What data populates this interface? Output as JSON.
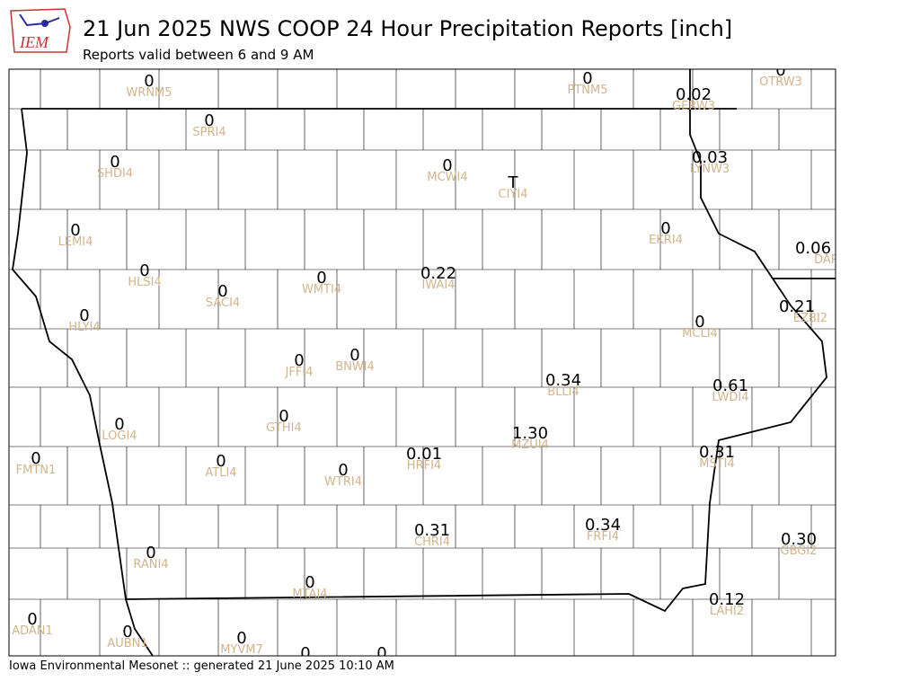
{
  "header": {
    "logo": "IEM",
    "title": "21 Jun 2025 NWS COOP 24 Hour Precipitation Reports [inch]",
    "subtitle": "Reports valid between 6 and 9 AM"
  },
  "stations": [
    {
      "value": "0",
      "id": "WRNM5"
    },
    {
      "value": "0",
      "id": "PTNM5"
    },
    {
      "value": "0",
      "id": "OTRW3"
    },
    {
      "value": "0.02",
      "id": "GERW3"
    },
    {
      "value": "0",
      "id": "SPRI4"
    },
    {
      "value": "0",
      "id": "SHDI4"
    },
    {
      "value": "0",
      "id": "MCWI4"
    },
    {
      "value": "T",
      "id": "CIYI4"
    },
    {
      "value": "0.03",
      "id": "LYNW3"
    },
    {
      "value": "0",
      "id": "LEMI4"
    },
    {
      "value": "0",
      "id": "EKRI4"
    },
    {
      "value": "0.06",
      "id": "DAR"
    },
    {
      "value": "0",
      "id": "HLSI4"
    },
    {
      "value": "0",
      "id": "SACI4"
    },
    {
      "value": "0",
      "id": "WMTI4"
    },
    {
      "value": "0.22",
      "id": "IWAI4"
    },
    {
      "value": "0.21",
      "id": "EZBI2"
    },
    {
      "value": "0",
      "id": "HLYI4"
    },
    {
      "value": "0",
      "id": "MCLI4"
    },
    {
      "value": "0",
      "id": "JFFI4"
    },
    {
      "value": "0",
      "id": "BNWI4"
    },
    {
      "value": "0.34",
      "id": "BLLI4"
    },
    {
      "value": "0.61",
      "id": "LWDI4"
    },
    {
      "value": "0",
      "id": "LOGI4"
    },
    {
      "value": "0",
      "id": "GTHI4"
    },
    {
      "value": "1.30",
      "id": "MZUI4"
    },
    {
      "value": "0",
      "id": "FMTN1"
    },
    {
      "value": "0.01",
      "id": "HRFI4"
    },
    {
      "value": "0.31",
      "id": "MSTI4"
    },
    {
      "value": "0",
      "id": "ATLI4"
    },
    {
      "value": "0",
      "id": "WTRI4"
    },
    {
      "value": "0.31",
      "id": "CHRI4"
    },
    {
      "value": "0.34",
      "id": "FRFI4"
    },
    {
      "value": "0.30",
      "id": "GBGI2"
    },
    {
      "value": "0",
      "id": "RANI4"
    },
    {
      "value": "0",
      "id": "MTAI4"
    },
    {
      "value": "0.12",
      "id": "LAHI2"
    },
    {
      "value": "0",
      "id": "ADAN1"
    },
    {
      "value": "0",
      "id": "AUBN1"
    },
    {
      "value": "0",
      "id": "MYVM7"
    },
    {
      "value": "0"
    },
    {
      "value": "0"
    }
  ],
  "footer": "Iowa Environmental Mesonet :: generated 21 June 2025 10:10 AM"
}
